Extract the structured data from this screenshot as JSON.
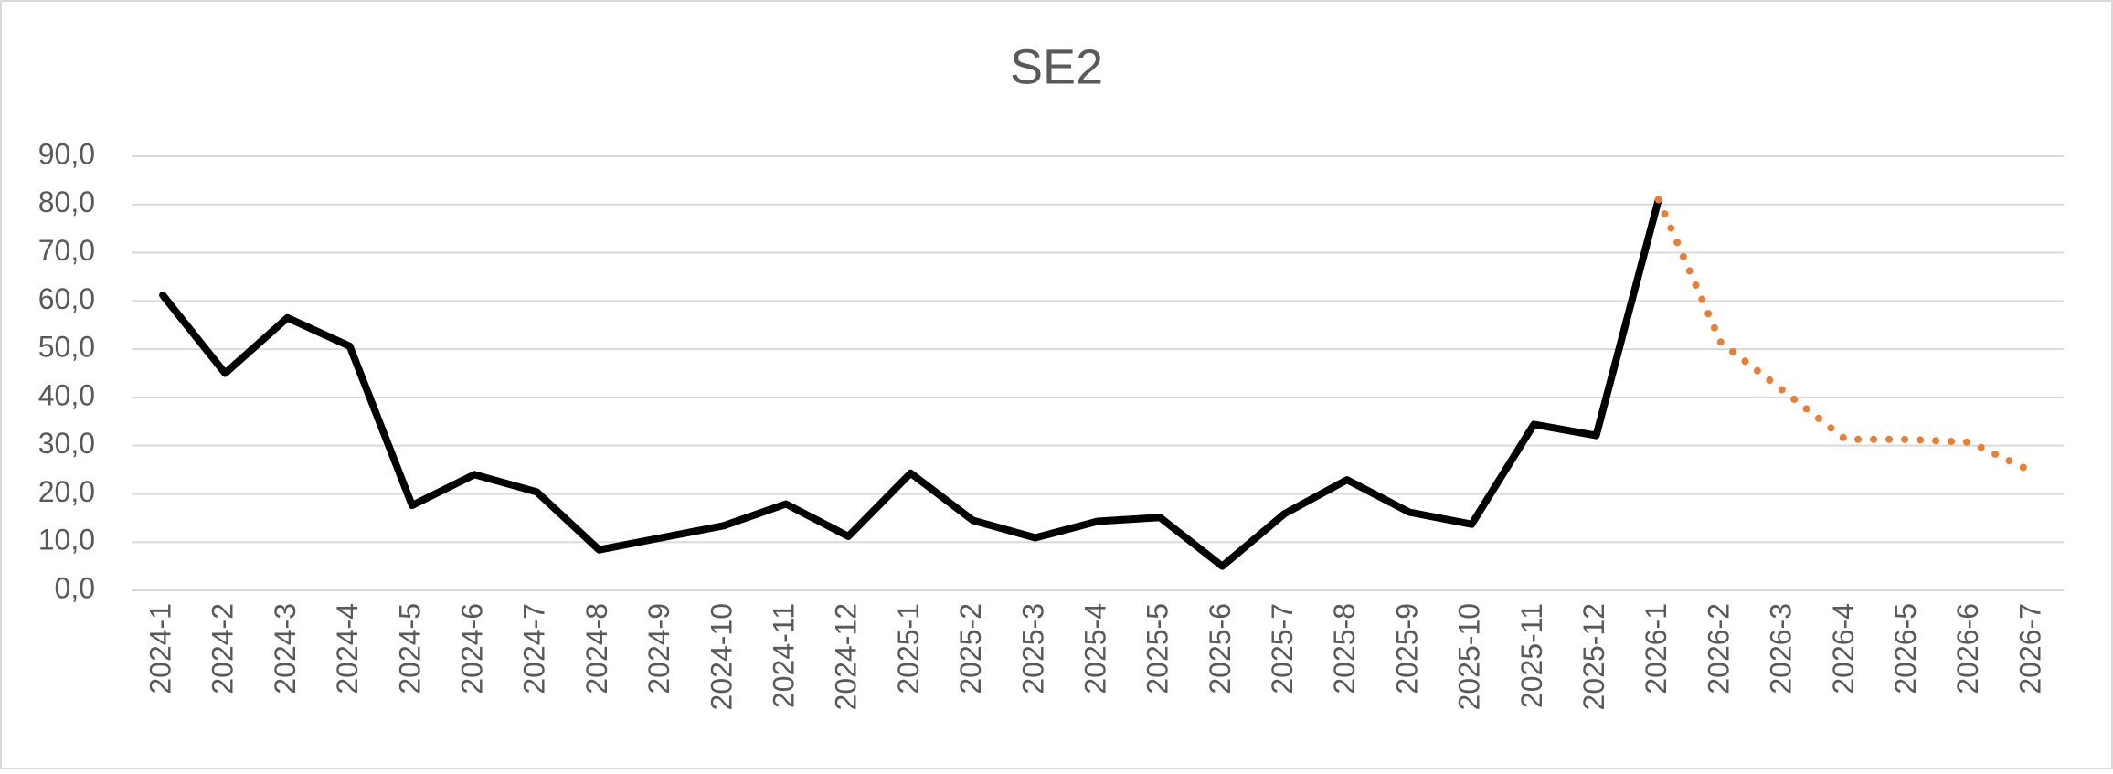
{
  "chart_data": {
    "type": "line",
    "title": "SE2",
    "categories": [
      "2024-1",
      "2024-2",
      "2024-3",
      "2024-4",
      "2024-5",
      "2024-6",
      "2024-7",
      "2024-8",
      "2024-9",
      "2024-10",
      "2024-11",
      "2024-12",
      "2025-1",
      "2025-2",
      "2025-3",
      "2025-4",
      "2025-5",
      "2025-6",
      "2025-7",
      "2025-8",
      "2025-9",
      "2025-10",
      "2025-11",
      "2025-12",
      "2026-1",
      "2026-2",
      "2026-3",
      "2026-4",
      "2026-5",
      "2026-6",
      "2026-7"
    ],
    "series": [
      {
        "color": "#000000",
        "style": "solid",
        "values": [
          61.2,
          45,
          56.5,
          50.6,
          17.6,
          24,
          20.4,
          8.4,
          10.9,
          13.4,
          17.9,
          11.2,
          24.3,
          14.5,
          10.9,
          14.3,
          15.1,
          5,
          15.9,
          22.9,
          16.2,
          13.7,
          34.4,
          32.1,
          81,
          null,
          null,
          null,
          null,
          null,
          null
        ]
      },
      {
        "color": "#ed7d31",
        "style": "dotted",
        "values": [
          null,
          null,
          null,
          null,
          null,
          null,
          null,
          null,
          null,
          null,
          null,
          null,
          null,
          null,
          null,
          null,
          null,
          null,
          null,
          null,
          null,
          null,
          null,
          null,
          81,
          51.4,
          41.4,
          31.3,
          31.3,
          30.7,
          24.6
        ]
      }
    ],
    "ylim": [
      0,
      90
    ],
    "yticks": [
      {
        "value": 0,
        "label": "0,0"
      },
      {
        "value": 10,
        "label": "10,0"
      },
      {
        "value": 20,
        "label": "20,0"
      },
      {
        "value": 30,
        "label": "30,0"
      },
      {
        "value": 40,
        "label": "40,0"
      },
      {
        "value": 50,
        "label": "50,0"
      },
      {
        "value": 60,
        "label": "60,0"
      },
      {
        "value": 70,
        "label": "70,0"
      },
      {
        "value": 80,
        "label": "80,0"
      },
      {
        "value": 90,
        "label": "90,0"
      }
    ],
    "grid": true
  }
}
